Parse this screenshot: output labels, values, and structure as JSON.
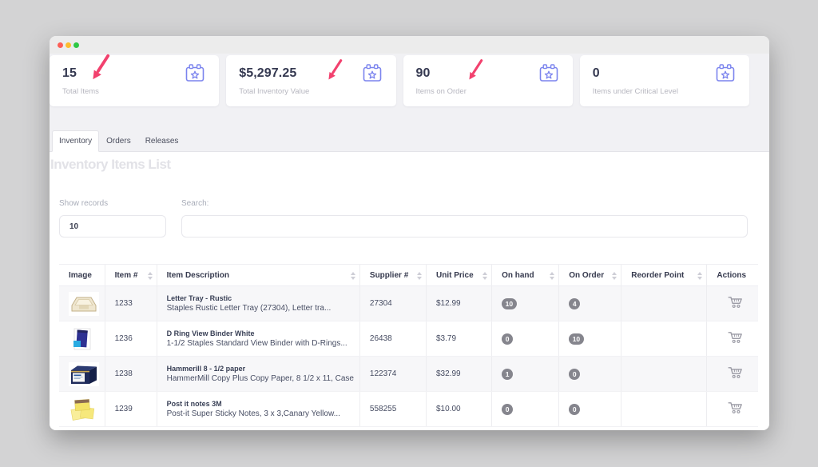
{
  "titlebar": {
    "traffic_lights": [
      "close",
      "minimize",
      "zoom"
    ]
  },
  "stats": [
    {
      "id": "total-items",
      "value": "15",
      "label": "Total Items",
      "icon": "calendar-star",
      "annotated": true
    },
    {
      "id": "total-inventory-value",
      "value": "$5,297.25",
      "label": "Total Inventory Value",
      "icon": "calendar-star",
      "annotated": true
    },
    {
      "id": "items-on-order",
      "value": "90",
      "label": "Items on Order",
      "icon": "calendar-star",
      "annotated": true
    },
    {
      "id": "items-under-critical-level",
      "value": "0",
      "label": "Items under Critical Level",
      "icon": "calendar-star",
      "annotated": false
    }
  ],
  "tabs": [
    {
      "id": "inventory",
      "label": "Inventory",
      "active": true
    },
    {
      "id": "orders",
      "label": "Orders",
      "active": false
    },
    {
      "id": "releases",
      "label": "Releases",
      "active": false
    }
  ],
  "heading": "Inventory Items List",
  "filters": {
    "show_records_label": "Show records",
    "records_value": "10",
    "search_label": "Search:",
    "search_value": ""
  },
  "table": {
    "columns": [
      {
        "label": "Image",
        "sortable": false
      },
      {
        "label": "Item #",
        "sortable": true
      },
      {
        "label": "Item Description",
        "sortable": true
      },
      {
        "label": "Supplier #",
        "sortable": true
      },
      {
        "label": "Unit Price",
        "sortable": true
      },
      {
        "label": "On hand",
        "sortable": true
      },
      {
        "label": "On Order",
        "sortable": true
      },
      {
        "label": "Reorder Point",
        "sortable": true
      },
      {
        "label": "Actions",
        "sortable": false
      }
    ],
    "rows": [
      {
        "image": "letter-tray",
        "item_no": "1233",
        "title": "Letter Tray - Rustic",
        "description": "Staples Rustic Letter Tray (27304), Letter tra...",
        "supplier_no": "27304",
        "unit_price": "$12.99",
        "on_hand": "10",
        "on_order": "4",
        "reorder_point": "",
        "action": "add-to-cart"
      },
      {
        "image": "binder",
        "item_no": "1236",
        "title": "D Ring View Binder White",
        "description": "1-1/2 Staples Standard View Binder with D-Rings...",
        "supplier_no": "26438",
        "unit_price": "$3.79",
        "on_hand": "0",
        "on_order": "10",
        "reorder_point": "",
        "action": "add-to-cart"
      },
      {
        "image": "paper-ream",
        "item_no": "1238",
        "title": "Hammerill 8 - 1/2 paper",
        "description": "HammerMill Copy Plus Copy Paper, 8 1/2 x 11, Case",
        "supplier_no": "122374",
        "unit_price": "$32.99",
        "on_hand": "1",
        "on_order": "0",
        "reorder_point": "",
        "action": "add-to-cart"
      },
      {
        "image": "post-it",
        "item_no": "1239",
        "title": "Post it notes 3M",
        "description": "Post-it Super Sticky Notes, 3 x 3,Canary Yellow...",
        "supplier_no": "558255",
        "unit_price": "$10.00",
        "on_hand": "0",
        "on_order": "0",
        "reorder_point": "",
        "action": "add-to-cart"
      }
    ]
  },
  "colors": {
    "accent_blue": "#7b84ee",
    "annotation_pink": "#f2416e",
    "badge_gray": "#85858d",
    "page_background": "#d3d3d4"
  }
}
